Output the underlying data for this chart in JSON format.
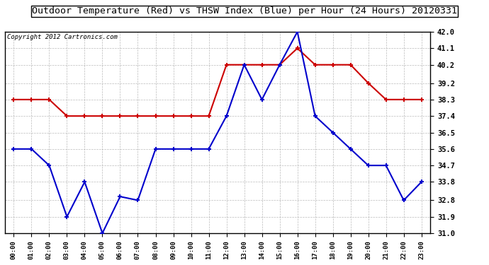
{
  "title": "Outdoor Temperature (Red) vs THSW Index (Blue) per Hour (24 Hours) 20120331",
  "copyright": "Copyright 2012 Cartronics.com",
  "hours": [
    "00:00",
    "01:00",
    "02:00",
    "03:00",
    "04:00",
    "05:00",
    "06:00",
    "07:00",
    "08:00",
    "09:00",
    "10:00",
    "11:00",
    "12:00",
    "13:00",
    "14:00",
    "15:00",
    "16:00",
    "17:00",
    "18:00",
    "19:00",
    "20:00",
    "21:00",
    "22:00",
    "23:00"
  ],
  "red_data": [
    38.3,
    38.3,
    38.3,
    37.4,
    37.4,
    37.4,
    37.4,
    37.4,
    37.4,
    37.4,
    37.4,
    37.4,
    40.2,
    40.2,
    40.2,
    40.2,
    41.1,
    40.2,
    40.2,
    40.2,
    39.2,
    38.3,
    38.3,
    38.3
  ],
  "blue_data": [
    35.6,
    35.6,
    34.7,
    31.9,
    33.8,
    31.0,
    33.0,
    32.8,
    35.6,
    35.6,
    35.6,
    35.6,
    37.4,
    40.2,
    38.3,
    40.2,
    42.0,
    37.4,
    36.5,
    35.6,
    34.7,
    34.7,
    32.8,
    33.8
  ],
  "ylim_min": 31.0,
  "ylim_max": 42.0,
  "yticks": [
    31.0,
    31.9,
    32.8,
    33.8,
    34.7,
    35.6,
    36.5,
    37.4,
    38.3,
    39.2,
    40.2,
    41.1,
    42.0
  ],
  "bg_color": "#ffffff",
  "plot_bg_color": "#ffffff",
  "red_color": "#cc0000",
  "blue_color": "#0000cc",
  "grid_color": "#aaaaaa",
  "title_color": "#000000",
  "copyright_color": "#000000",
  "title_fontsize": 9.5,
  "copyright_fontsize": 6.5,
  "tick_fontsize": 7.5,
  "xtick_fontsize": 6.5,
  "linewidth": 1.5,
  "markersize": 3
}
